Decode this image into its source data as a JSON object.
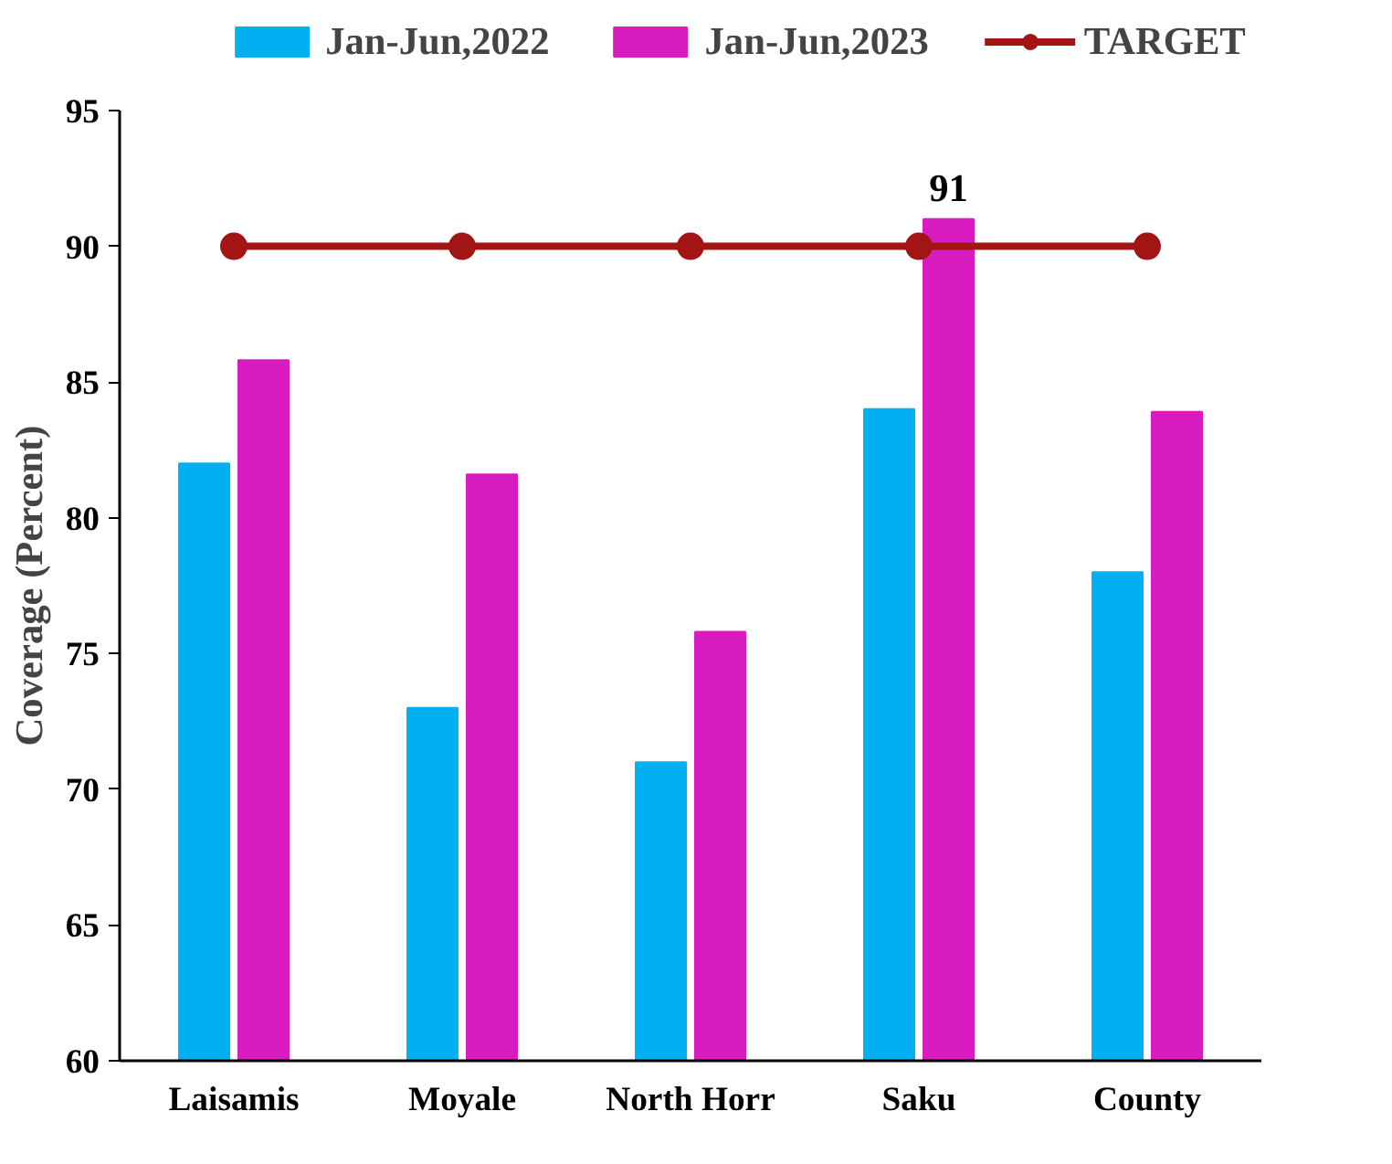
{
  "chart_data": {
    "type": "bar",
    "ylabel": "Coverage (Percent)",
    "categories": [
      "Laisamis",
      "Moyale",
      "North Horr",
      "Saku",
      "County"
    ],
    "series": [
      {
        "name": "Jan-Jun,2022",
        "color": "#00b0f0",
        "values": [
          82,
          73,
          71,
          84,
          78
        ]
      },
      {
        "name": "Jan-Jun,2023",
        "color": "#d81cc0",
        "values": [
          85.8,
          81.6,
          75.8,
          91,
          83.9
        ],
        "value_labels": [
          null,
          null,
          null,
          "91",
          null
        ]
      },
      {
        "name": "TARGET",
        "type": "line",
        "color": "#a31515",
        "marker": "circle",
        "values": [
          90,
          90,
          90,
          90,
          90
        ]
      }
    ],
    "ylim": [
      60,
      95
    ],
    "yticks": [
      60,
      65,
      70,
      75,
      80,
      85,
      90,
      95
    ],
    "grid": false,
    "legend": "top"
  }
}
